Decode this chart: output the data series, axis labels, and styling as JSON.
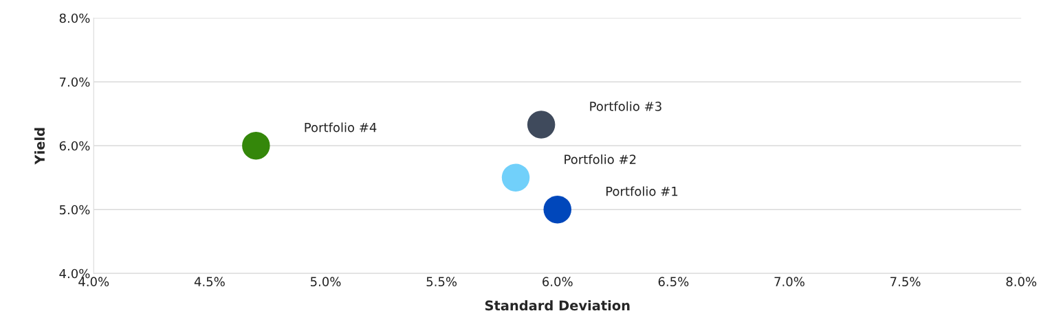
{
  "chart_data": {
    "type": "scatter",
    "xlabel": "Standard Deviation",
    "ylabel": "Yield",
    "series": [
      {
        "name": "Portfolio #1",
        "color": "#0047bb",
        "x": [
          6.0
        ],
        "values": [
          5.0
        ]
      },
      {
        "name": "Portfolio #2",
        "color": "#71d0fa",
        "x": [
          5.82
        ],
        "values": [
          5.5
        ]
      },
      {
        "name": "Portfolio #3",
        "color": "#3f4a5c",
        "x": [
          5.93
        ],
        "values": [
          6.33
        ]
      },
      {
        "name": "Portfolio #4",
        "color": "#34870a",
        "x": [
          4.7
        ],
        "values": [
          6.0
        ]
      }
    ],
    "xlim": [
      4.0,
      8.0
    ],
    "ylim": [
      4.0,
      8.0
    ],
    "xticks": [
      {
        "value": 4.0,
        "label": "4.0%"
      },
      {
        "value": 4.5,
        "label": "4.5%"
      },
      {
        "value": 5.0,
        "label": "5.0%"
      },
      {
        "value": 5.5,
        "label": "5.5%"
      },
      {
        "value": 6.0,
        "label": "6.0%"
      },
      {
        "value": 6.5,
        "label": "6.5%"
      },
      {
        "value": 7.0,
        "label": "7.0%"
      },
      {
        "value": 7.5,
        "label": "7.5%"
      },
      {
        "value": 8.0,
        "label": "8.0%"
      }
    ],
    "yticks": [
      {
        "value": 4.0,
        "label": "4.0%"
      },
      {
        "value": 5.0,
        "label": "5.0%"
      },
      {
        "value": 6.0,
        "label": "6.0%"
      },
      {
        "value": 7.0,
        "label": "7.0%"
      },
      {
        "value": 8.0,
        "label": "8.0%"
      }
    ],
    "grid": "y",
    "marker": "circle",
    "legend": false
  }
}
